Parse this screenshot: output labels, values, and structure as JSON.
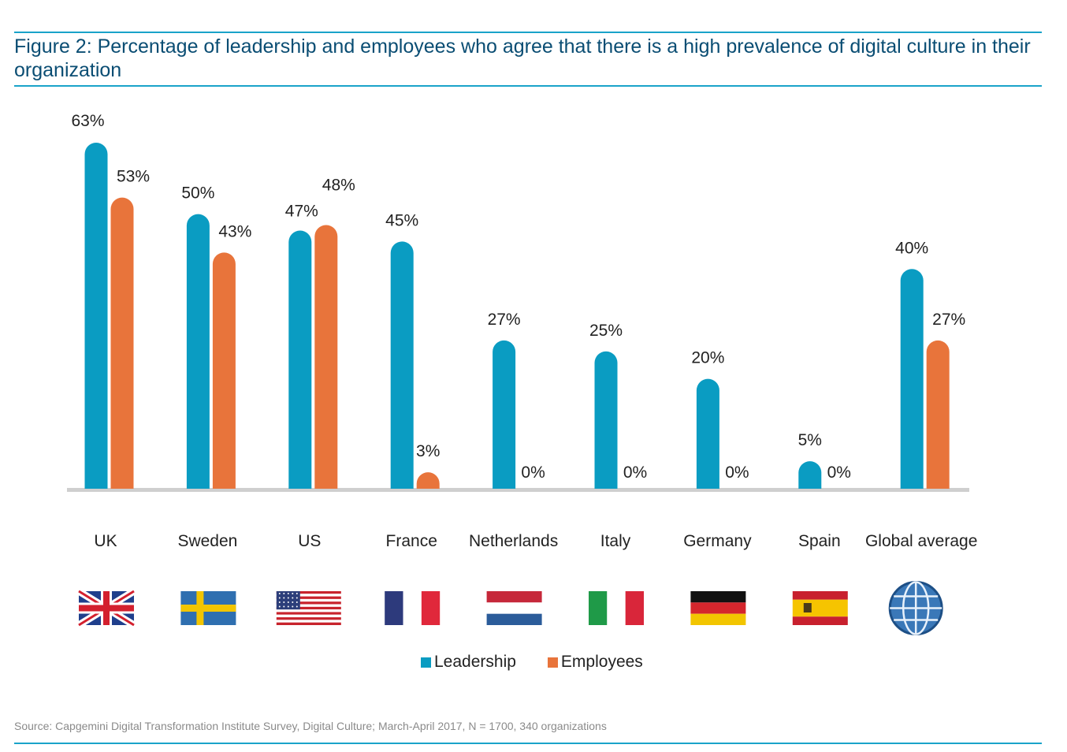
{
  "title": "Figure 2: Percentage of leadership and employees who agree that there is a high prevalence of  digital culture in their organization",
  "colors": {
    "leadership": "#0a9cc2",
    "employees": "#e8743b",
    "rule": "#1aa3c9",
    "axis": "#cfcfcf"
  },
  "chart_data": {
    "type": "bar",
    "categories": [
      "UK",
      "Sweden",
      "US",
      "France",
      "Netherlands",
      "Italy",
      "Germany",
      "Spain",
      "Global average"
    ],
    "series": [
      {
        "name": "Leadership",
        "values": [
          63,
          50,
          47,
          45,
          27,
          25,
          20,
          5,
          40
        ],
        "labels": [
          "63%",
          "50%",
          "47%",
          "45%",
          "27%",
          "25%",
          "20%",
          "5%",
          "40%"
        ]
      },
      {
        "name": "Employees",
        "values": [
          53,
          43,
          48,
          3,
          0,
          0,
          0,
          0,
          27
        ],
        "labels": [
          "53%",
          "43%",
          "48%",
          "3%",
          "0%",
          "0%",
          "0%",
          "0%",
          "27%"
        ]
      }
    ],
    "ylim": [
      0,
      63
    ],
    "grid": false,
    "legend": "bottom-center",
    "flags": [
      "uk-flag-icon",
      "sweden-flag-icon",
      "us-flag-icon",
      "france-flag-icon",
      "netherlands-flag-icon",
      "italy-flag-icon",
      "germany-flag-icon",
      "spain-flag-icon",
      "globe-icon"
    ]
  },
  "legend": {
    "leadership": "Leadership",
    "employees": "Employees"
  },
  "source": "Source: Capgemini Digital Transformation Institute Survey, Digital Culture; March-April 2017, N = 1700, 340 organizations"
}
